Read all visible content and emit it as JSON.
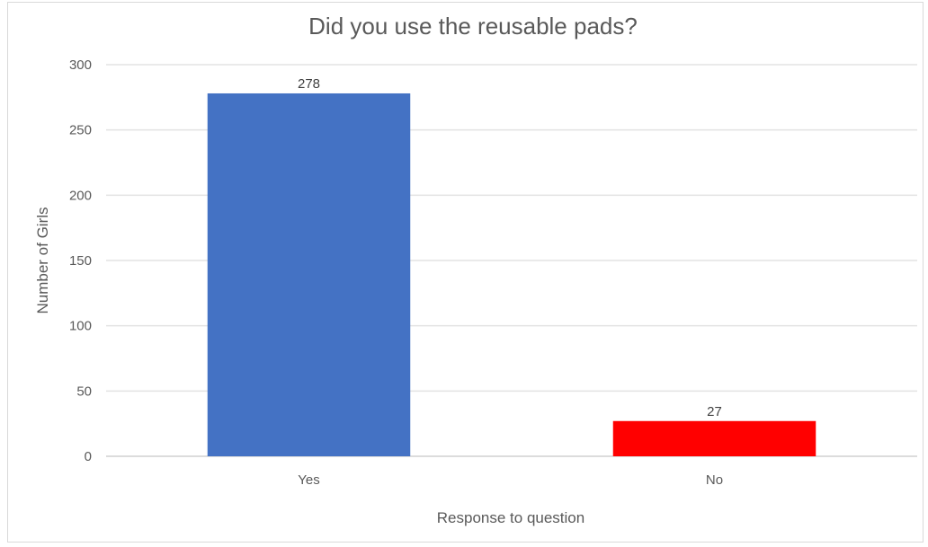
{
  "chart_data": {
    "type": "bar",
    "title": "Did you use the reusable pads?",
    "xlabel": "Response to question",
    "ylabel": "Number of Girls",
    "categories": [
      "Yes",
      "No"
    ],
    "values": [
      278,
      27
    ],
    "data_labels": [
      "278",
      "27"
    ],
    "bar_colors": [
      "#4472c4",
      "#ff0000"
    ],
    "ylim": [
      0,
      300
    ],
    "yticks": [
      0,
      50,
      100,
      150,
      200,
      250,
      300
    ],
    "ytick_labels": [
      "0",
      "50",
      "100",
      "150",
      "200",
      "250",
      "300"
    ],
    "grid": true,
    "legend": "none"
  }
}
